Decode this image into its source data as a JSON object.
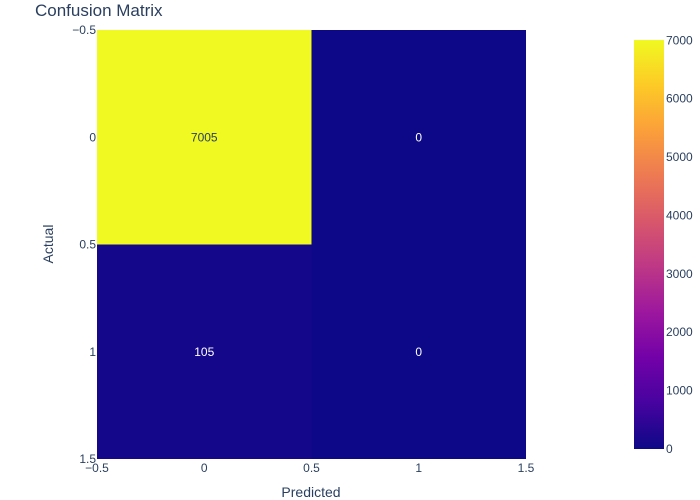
{
  "chart_data": {
    "type": "heatmap",
    "title": "Confusion Matrix",
    "xlabel": "Predicted",
    "ylabel": "Actual",
    "x": [
      0,
      1
    ],
    "y": [
      0,
      1
    ],
    "z": [
      [
        7005,
        0
      ],
      [
        105,
        0
      ]
    ],
    "xlim": [
      -0.5,
      1.5
    ],
    "ylim": [
      -0.5,
      1.5
    ],
    "y_reversed": true,
    "x_ticks": [
      "−0.5",
      "0",
      "0.5",
      "1",
      "1.5"
    ],
    "y_ticks": [
      "−0.5",
      "0",
      "0.5",
      "1",
      "1.5"
    ],
    "colorbar": {
      "min": 0,
      "max": 7005,
      "ticks": [
        "0",
        "1000",
        "2000",
        "3000",
        "4000",
        "5000",
        "6000",
        "7000"
      ],
      "colorscale": "plasma"
    },
    "grid": false,
    "colors": {
      "title": "#2a3f5f",
      "tick": "#2a3f5f"
    }
  }
}
